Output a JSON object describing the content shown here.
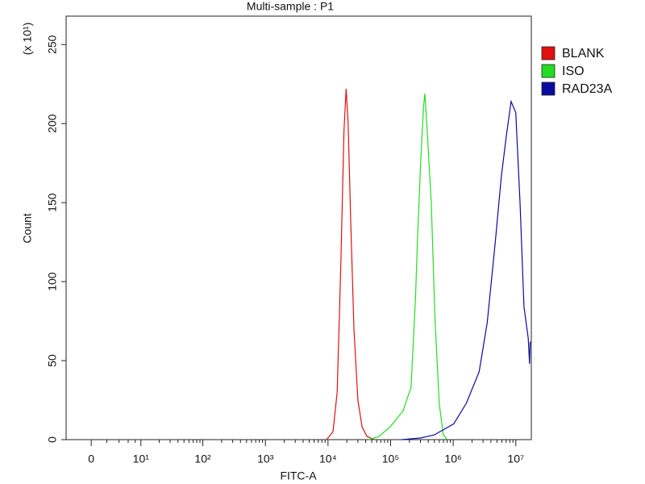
{
  "chart_data": {
    "type": "line",
    "title": "Multi-sample : P1",
    "y_label": "Count",
    "y_multiplier": "(x 10¹)",
    "x_label": "FITC-A",
    "x_scale": "biexponential",
    "xlim": [
      -3.5,
      17700000
    ],
    "xticks": [
      0,
      {
        "value": 10,
        "label": "10¹"
      },
      {
        "value": 100,
        "label": "10²"
      },
      {
        "value": 1000,
        "label": "10³"
      },
      {
        "value": 10000,
        "label": "10⁴"
      },
      {
        "value": 100000,
        "label": "10⁵"
      },
      {
        "value": 1000000,
        "label": "10⁶"
      },
      {
        "value": 10000000,
        "label": "10⁷"
      }
    ],
    "xminorticks": [
      2,
      4,
      6,
      8,
      20,
      30,
      40,
      50,
      60,
      70,
      80,
      90,
      200,
      300,
      400,
      500,
      600,
      700,
      800,
      900,
      2000,
      3000,
      4000,
      5000,
      6000,
      7000,
      8000,
      9000,
      20000,
      30000,
      40000,
      50000,
      60000,
      70000,
      80000,
      90000,
      200000,
      300000,
      400000,
      500000,
      600000,
      700000,
      800000,
      900000,
      2000000,
      3000000,
      4000000,
      5000000,
      6000000,
      7000000,
      8000000,
      9000000
    ],
    "ylim": [
      0,
      268
    ],
    "yticks": [
      0,
      50,
      100,
      150,
      200,
      250
    ],
    "legend": "right",
    "series": [
      {
        "name": "BLANK",
        "color": "#e01010",
        "x": [
          9500,
          12000,
          14000,
          16000,
          18000,
          19500,
          21000,
          23000,
          26000,
          30000,
          35000,
          42000,
          55000
        ],
        "values": [
          0,
          5,
          30,
          110,
          195,
          222,
          200,
          140,
          70,
          25,
          8,
          2,
          0
        ]
      },
      {
        "name": "ISO",
        "color": "#22dd22",
        "x": [
          45000,
          65000,
          98000,
          157000,
          212000,
          250000,
          268000,
          303000,
          335000,
          353000,
          385000,
          446000,
          515000,
          598000,
          694000,
          806000
        ],
        "values": [
          0,
          2,
          8,
          18,
          33,
          90,
          125,
          176,
          210,
          219,
          195,
          150,
          74,
          23,
          3,
          0
        ]
      },
      {
        "name": "RAD23A",
        "color": "#0a0aa0",
        "x": [
          150000,
          300000,
          500000,
          1020000,
          1620000,
          2600000,
          3500000,
          4700000,
          5850000,
          7000000,
          8400000,
          10000000,
          11700000,
          13500000,
          15800000,
          16600000,
          17000000
        ],
        "values": [
          0,
          1,
          3,
          10,
          23,
          43,
          74,
          125,
          166,
          191,
          214,
          207,
          150,
          84,
          64,
          48,
          62
        ]
      }
    ]
  }
}
